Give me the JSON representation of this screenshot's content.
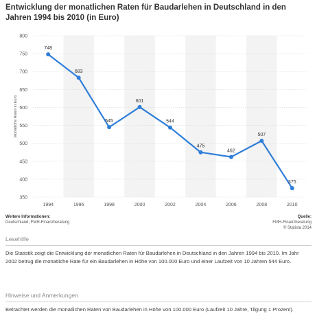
{
  "title": "Entwicklung der monatlichen Raten für Baudarlehen in Deutschland in den Jahren 1994 bis 2010 (in Euro)",
  "chart_data": {
    "type": "line",
    "title": "Entwicklung der monatlichen Raten für Baudarlehen in Deutschland in den Jahren 1994 bis 2010 (in Euro)",
    "xlabel": "",
    "ylabel": "Monatliche Raten in Euro",
    "categories": [
      "1994",
      "1996",
      "1998",
      "2000",
      "2002",
      "2004",
      "2006",
      "2008",
      "2010"
    ],
    "values": [
      748,
      683,
      545,
      601,
      544,
      475,
      462,
      507,
      375
    ],
    "ylim": [
      350,
      800
    ],
    "yticks": [
      350,
      400,
      450,
      500,
      550,
      600,
      650,
      700,
      750,
      800
    ],
    "grid": true,
    "color": "#2f7ed8",
    "band_color": "#f3f3f3"
  },
  "sources": {
    "left_head": "Weitere Informationen:",
    "left_text": "Deutschland; FMH-Finanzberatung",
    "right_head": "Quelle:",
    "right_line1": "FMH-Finanzberatung",
    "right_line2": "© Statista 2014"
  },
  "lesehilfe": {
    "heading": "Lesehilfe",
    "text": "Die Statistik zeigt die Entwicklung der monatlichen Raten für Baudarlehen in Deutschland in den Jahren 1994 bis 2010. Im Jahr 2002 betrug die monatliche Rate für ein Baudarlehen in Höhe von 100.000 Euro und einer Laufzeit von 10 Jahren 544 Euro."
  },
  "hinweise": {
    "heading": "Hinweise und Anmerkungen",
    "text": "Betrachtet werden die monatlichen Raten von Baudarlehen in Höhe von 100.000 Euro (Laufzeit 10 Jahre, Tilgung 1 Prozent)."
  }
}
